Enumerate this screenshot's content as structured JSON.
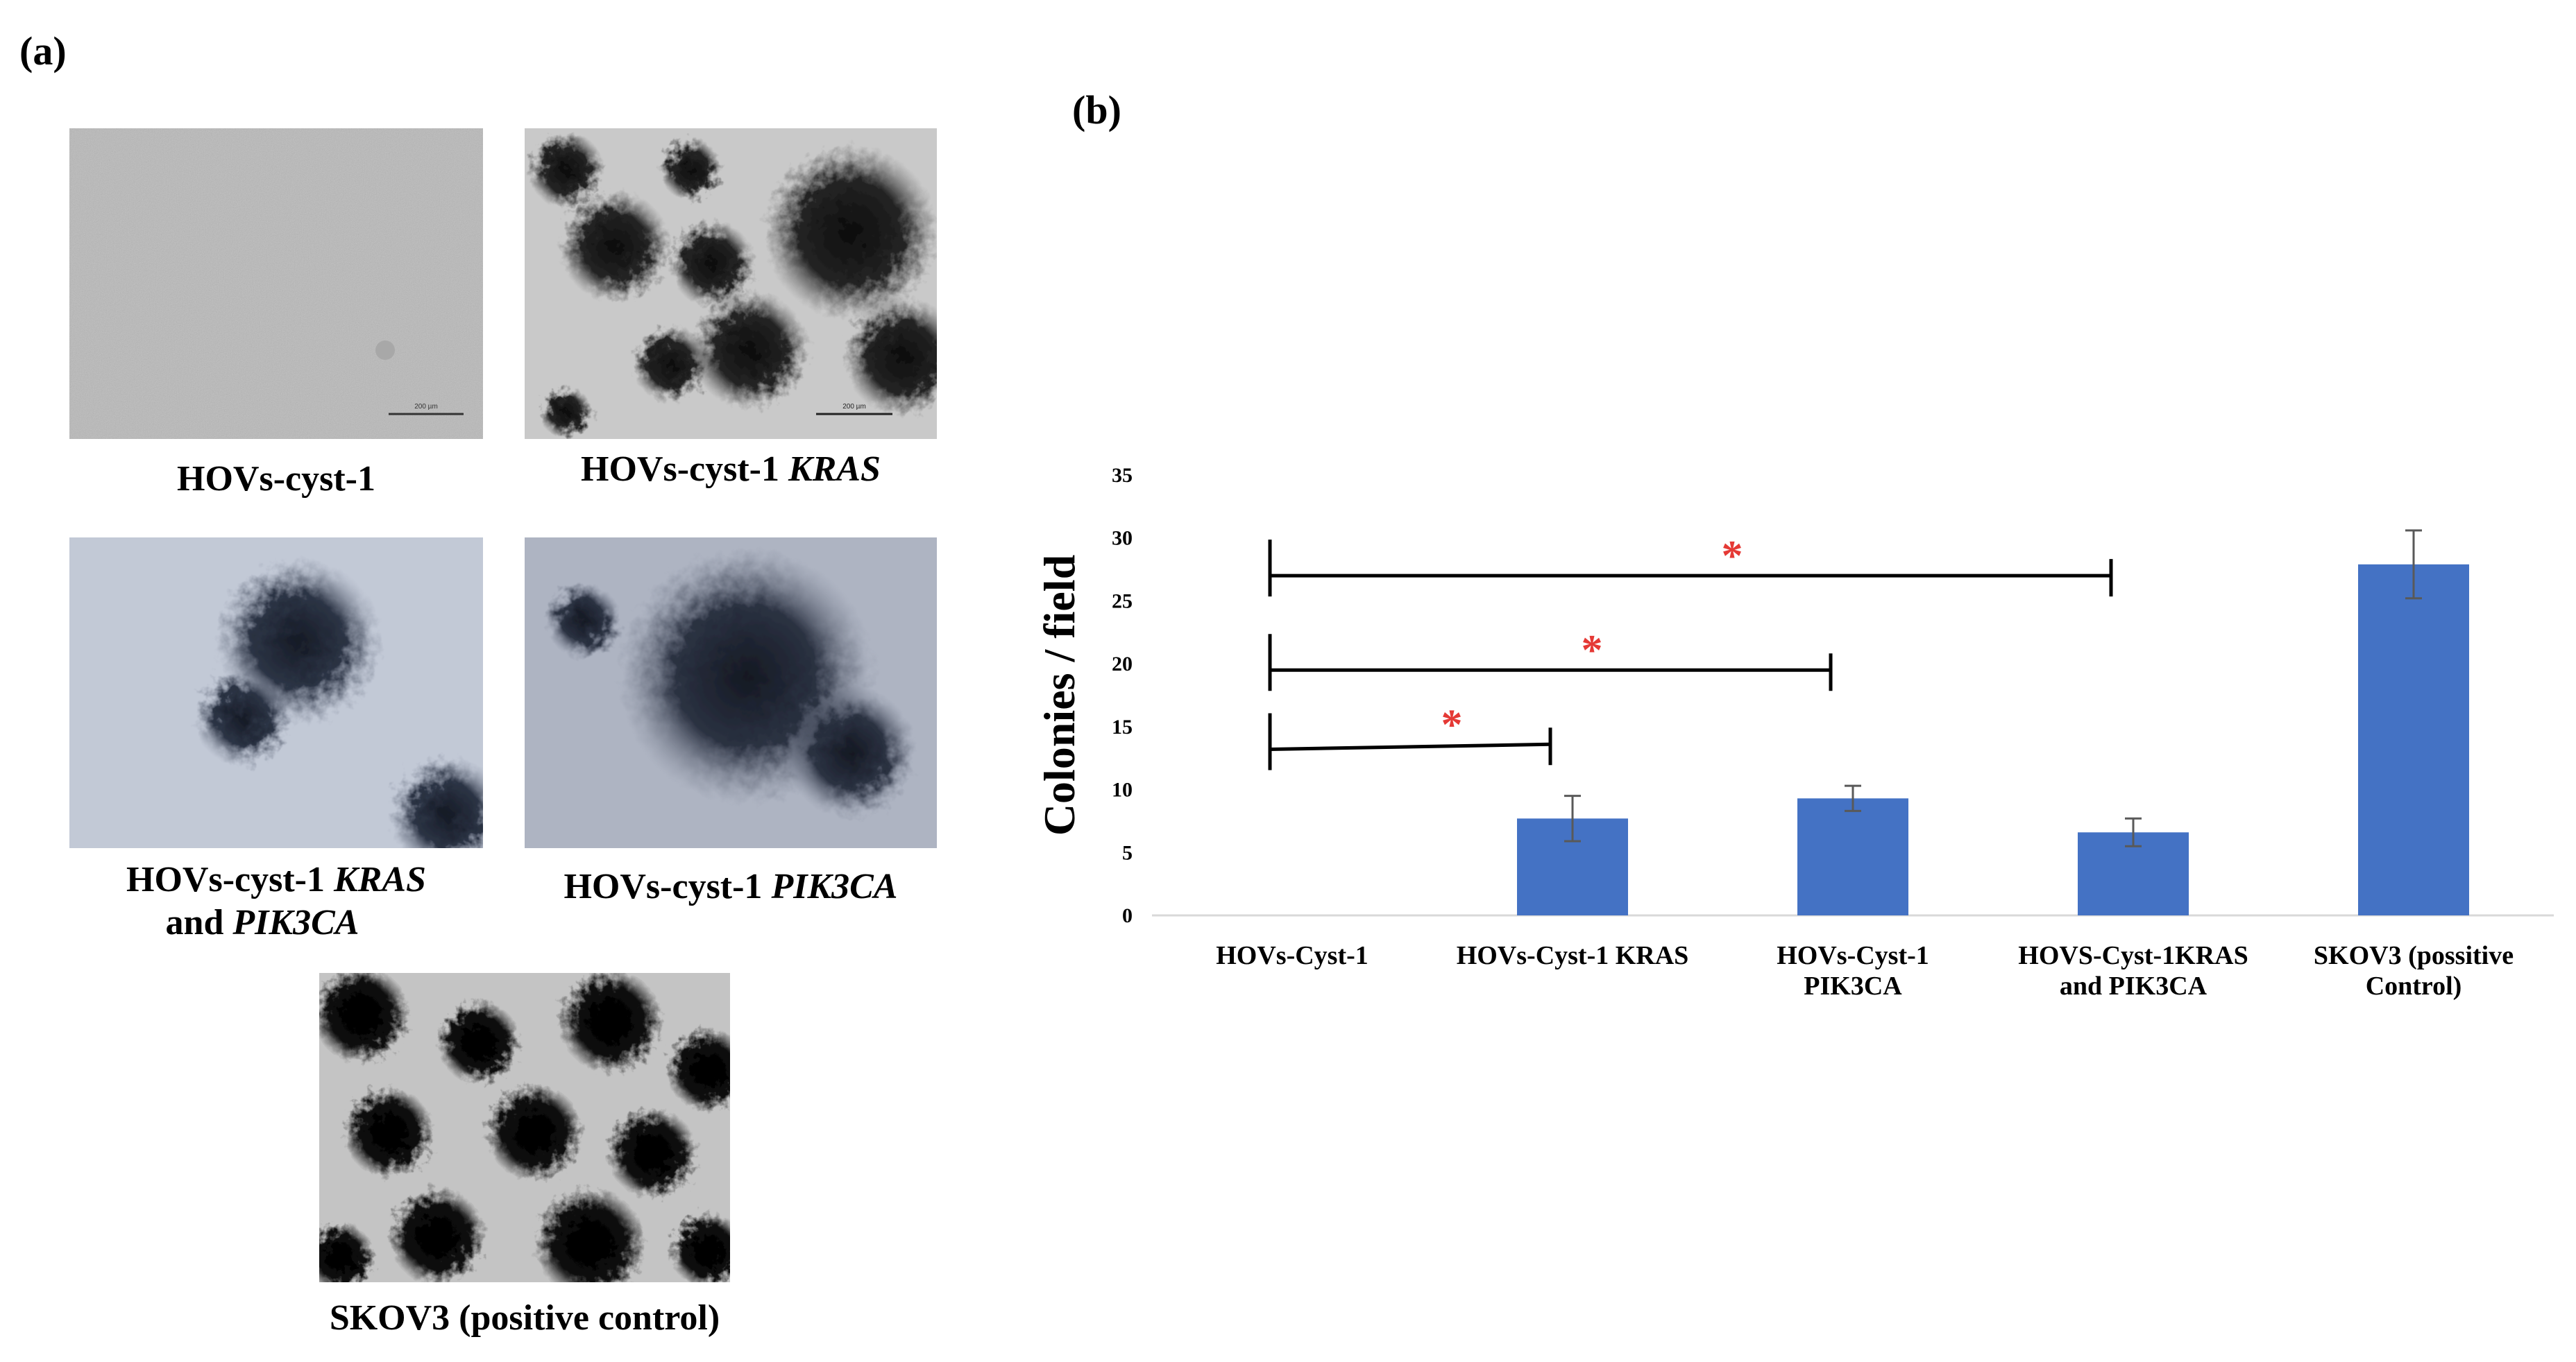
{
  "panels": {
    "a_label": "(a)",
    "b_label": "(b)"
  },
  "micrographs": [
    {
      "id": "hovs-cyst-1",
      "caption": "HOVs-cyst-1",
      "caption_italic": "",
      "caption_line2_prefix": "",
      "caption_line2_italic": "",
      "scale_label": "200 µm"
    },
    {
      "id": "hovs-cyst-1-kras",
      "caption": "HOVs-cyst-1 ",
      "caption_italic": "KRAS",
      "caption_line2_prefix": "",
      "caption_line2_italic": "",
      "scale_label": "200 µm"
    },
    {
      "id": "hovs-cyst-1-kras-pik3ca",
      "caption": "HOVs-cyst-1 ",
      "caption_italic": "KRAS",
      "caption_line2_prefix": "and ",
      "caption_line2_italic": "PIK3CA",
      "scale_label": ""
    },
    {
      "id": "hovs-cyst-1-pik3ca",
      "caption": "HOVs-cyst-1 ",
      "caption_italic": "PIK3CA",
      "caption_line2_prefix": "",
      "caption_line2_italic": "",
      "scale_label": ""
    },
    {
      "id": "skov3",
      "caption": "SKOV3 (positive control)",
      "caption_italic": "",
      "caption_line2_prefix": "",
      "caption_line2_italic": "",
      "scale_label": ""
    }
  ],
  "chart_data": {
    "type": "bar",
    "title": "",
    "ylabel": "Colonies / field",
    "xlabel": "",
    "ylim": [
      0,
      35
    ],
    "yticks": [
      0,
      5,
      10,
      15,
      20,
      25,
      30,
      35
    ],
    "grid": false,
    "categories": [
      [
        "HOVs-Cyst-1"
      ],
      [
        "HOVs-Cyst-1 KRAS"
      ],
      [
        "HOVs-Cyst-1",
        "PIK3CA"
      ],
      [
        "HOVS-Cyst-1KRAS",
        "and PIK3CA"
      ],
      [
        "SKOV3 (possitive",
        "Control)"
      ]
    ],
    "values": [
      0,
      7.7,
      9.3,
      6.6,
      27.9
    ],
    "errors": [
      0,
      1.8,
      1.0,
      1.1,
      2.7
    ],
    "bar_color": "#4472C4",
    "significance": [
      {
        "from": 0,
        "to": 1,
        "y_left": 13.2,
        "y_right": 13.6,
        "label": "*"
      },
      {
        "from": 0,
        "to": 2,
        "y_left": 19.5,
        "y_right": 19.5,
        "label": "*"
      },
      {
        "from": 0,
        "to": 3,
        "y_left": 27.0,
        "y_right": 27.0,
        "label": "*"
      }
    ],
    "significance_color": "#e53935"
  }
}
